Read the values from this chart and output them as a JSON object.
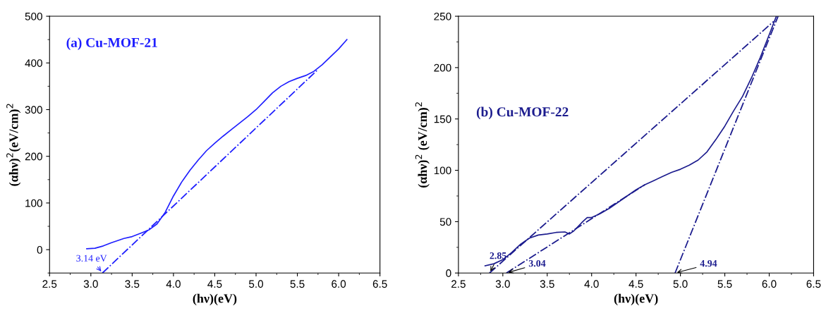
{
  "chart_data": [
    {
      "type": "line",
      "title": "(a) Cu-MOF-21",
      "xlabel": "(hν)(eV)",
      "ylabel": "(αhν)$^{2}$(eV/cm)$^{2}$",
      "xlim": [
        2.5,
        6.5
      ],
      "xticks": [
        {
          "value": 2.5,
          "label": "2.5"
        },
        {
          "value": 3.0,
          "label": "3.0"
        },
        {
          "value": 3.5,
          "label": "3.5"
        },
        {
          "value": 4.0,
          "label": "4.0"
        },
        {
          "value": 4.5,
          "label": "4.5"
        },
        {
          "value": 5.0,
          "label": "5.0"
        },
        {
          "value": 5.5,
          "label": "5.5"
        },
        {
          "value": 6.0,
          "label": "6.0"
        },
        {
          "value": 6.5,
          "label": "6.5"
        }
      ],
      "ylim": [
        -50,
        500
      ],
      "yticks": [
        0,
        100,
        200,
        300,
        400,
        500
      ],
      "grid": false,
      "legend": false,
      "series": [
        {
          "color": "#1f1fff",
          "line_style": "solid",
          "x": [
            2.95,
            3.05,
            3.15,
            3.25,
            3.4,
            3.5,
            3.6,
            3.7,
            3.8,
            3.9,
            4.0,
            4.1,
            4.2,
            4.3,
            4.4,
            4.5,
            4.6,
            4.7,
            4.8,
            4.9,
            5.0,
            5.1,
            5.2,
            5.3,
            5.4,
            5.5,
            5.6,
            5.7,
            5.8,
            5.9,
            6.0,
            6.1
          ],
          "values": [
            2,
            3,
            8,
            15,
            24,
            28,
            35,
            42,
            55,
            80,
            115,
            145,
            170,
            192,
            212,
            228,
            243,
            257,
            271,
            285,
            300,
            318,
            336,
            350,
            360,
            367,
            373,
            382,
            396,
            413,
            430,
            450
          ]
        },
        {
          "type": "line",
          "color": "#1f1fff",
          "line_style": "dashed",
          "x": [
            3.14,
            5.75
          ],
          "values": [
            -50,
            386
          ]
        }
      ],
      "annotations": [
        {
          "text": "3.14 eV",
          "x": 3.14,
          "y": -50
        }
      ]
    },
    {
      "type": "line",
      "title": "(b) Cu-MOF-22",
      "xlabel": "(hν)(eV)",
      "ylabel": "(αhν)$^{2}$ (eV/cm)$^{2}$",
      "xlim": [
        2.5,
        6.5
      ],
      "xticks": [
        {
          "value": 2.5,
          "label": "2.5"
        },
        {
          "value": 3.0,
          "label": "3.0"
        },
        {
          "value": 3.5,
          "label": "3.5"
        },
        {
          "value": 4.0,
          "label": "4.0"
        },
        {
          "value": 4.5,
          "label": "4.5"
        },
        {
          "value": 5.0,
          "label": "5.0"
        },
        {
          "value": 5.5,
          "label": "5.5"
        },
        {
          "value": 6.0,
          "label": "6.0"
        },
        {
          "value": 6.5,
          "label": "6.5"
        }
      ],
      "ylim": [
        0,
        250
      ],
      "yticks": [
        0,
        50,
        100,
        150,
        200,
        250
      ],
      "grid": false,
      "legend": false,
      "series": [
        {
          "color": "#1c1c8e",
          "line_style": "solid",
          "x": [
            2.8,
            2.9,
            3.0,
            3.1,
            3.2,
            3.3,
            3.4,
            3.5,
            3.6,
            3.7,
            3.75,
            3.8,
            3.9,
            3.95,
            4.0,
            4.1,
            4.2,
            4.3,
            4.4,
            4.5,
            4.6,
            4.7,
            4.8,
            4.9,
            5.0,
            5.1,
            5.2,
            5.3,
            5.4,
            5.5,
            5.6,
            5.7,
            5.8,
            5.9,
            6.0,
            6.08
          ],
          "values": [
            7,
            9,
            13,
            20,
            28,
            34,
            37,
            38,
            39.5,
            40,
            38,
            41,
            50,
            54,
            54,
            58,
            63,
            69,
            75,
            81,
            86,
            90,
            94,
            98,
            101,
            105,
            110,
            118,
            130,
            143,
            158,
            172,
            190,
            210,
            232,
            250
          ]
        },
        {
          "type": "line",
          "color": "#1c1c8e",
          "line_style": "dashed",
          "x": [
            2.85,
            6.05
          ],
          "values": [
            0,
            245
          ]
        },
        {
          "type": "line",
          "color": "#1c1c8e",
          "line_style": "dashed",
          "x": [
            3.04,
            4.6
          ],
          "values": [
            0,
            86
          ]
        },
        {
          "type": "line",
          "color": "#1c1c8e",
          "line_style": "dashed",
          "x": [
            4.94,
            6.1
          ],
          "values": [
            0,
            250
          ]
        }
      ],
      "annotations": [
        {
          "text": "2.85",
          "x": 2.85,
          "y": 0
        },
        {
          "text": "3.04",
          "x": 3.04,
          "y": 0
        },
        {
          "text": "4.94",
          "x": 4.94,
          "y": 0
        }
      ]
    }
  ]
}
